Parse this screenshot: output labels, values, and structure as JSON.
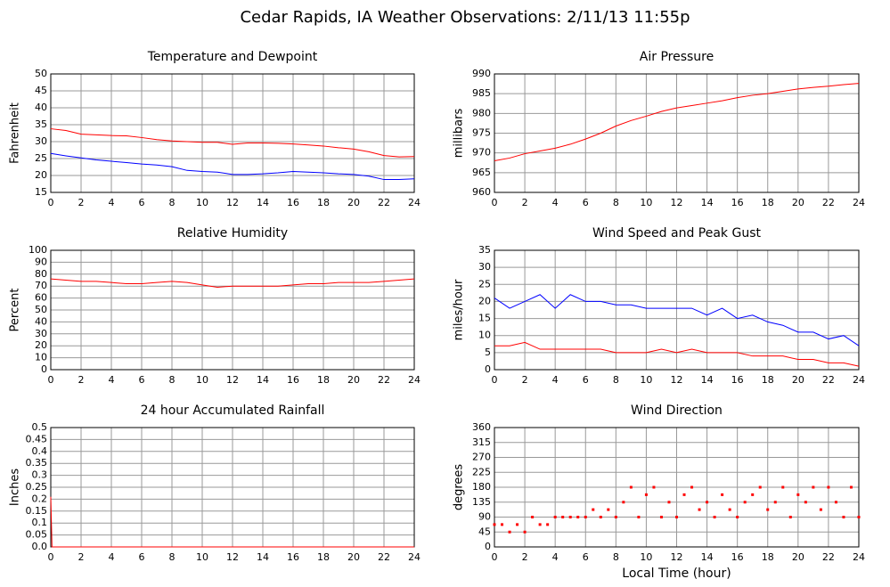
{
  "title": "Cedar Rapids, IA Weather Observations: 2/11/13 11:55p",
  "chart_data": [
    {
      "type": "line",
      "title": "Temperature and Dewpoint",
      "ylabel": "Fahrenheit",
      "x": [
        0,
        1,
        2,
        3,
        4,
        5,
        6,
        7,
        8,
        9,
        10,
        11,
        12,
        13,
        14,
        15,
        16,
        17,
        18,
        19,
        20,
        21,
        22,
        23,
        24
      ],
      "series": [
        {
          "color": "#ff0000",
          "values": [
            33.8,
            33.3,
            32.2,
            32,
            31.8,
            31.7,
            31.2,
            30.6,
            30.2,
            30,
            29.8,
            29.8,
            29.2,
            29.6,
            29.6,
            29.5,
            29.3,
            29,
            28.7,
            28.2,
            27.8,
            27,
            25.9,
            25.5,
            25.6
          ]
        },
        {
          "color": "#0000ff",
          "values": [
            26.5,
            25.8,
            25.2,
            24.6,
            24.2,
            23.8,
            23.4,
            23.1,
            22.6,
            21.5,
            21.2,
            21,
            20.3,
            20.3,
            20.5,
            20.8,
            21.2,
            21,
            20.8,
            20.5,
            20.3,
            19.8,
            18.8,
            18.8,
            19
          ]
        }
      ],
      "xlim": [
        0,
        24
      ],
      "xticks": [
        0,
        2,
        4,
        6,
        8,
        10,
        12,
        14,
        16,
        18,
        20,
        22,
        24
      ],
      "ylim": [
        15,
        50
      ],
      "yticks": [
        15,
        20,
        25,
        30,
        35,
        40,
        45,
        50
      ],
      "grid": true
    },
    {
      "type": "line",
      "title": "Air Pressure",
      "ylabel": "millibars",
      "x": [
        0,
        1,
        2,
        3,
        4,
        5,
        6,
        7,
        8,
        9,
        10,
        11,
        12,
        13,
        14,
        15,
        16,
        17,
        18,
        19,
        20,
        21,
        22,
        23,
        24
      ],
      "series": [
        {
          "color": "#ff0000",
          "values": [
            968,
            968.7,
            969.8,
            970.5,
            971.2,
            972.2,
            973.5,
            975,
            976.8,
            978.2,
            979.3,
            980.5,
            981.4,
            982,
            982.6,
            983.2,
            984,
            984.6,
            985,
            985.6,
            986.2,
            986.6,
            986.9,
            987.3,
            987.6
          ]
        }
      ],
      "xlim": [
        0,
        24
      ],
      "xticks": [
        0,
        2,
        4,
        6,
        8,
        10,
        12,
        14,
        16,
        18,
        20,
        22,
        24
      ],
      "ylim": [
        960,
        990
      ],
      "yticks": [
        960,
        965,
        970,
        975,
        980,
        985,
        990
      ],
      "grid": true
    },
    {
      "type": "line",
      "title": "Relative Humidity",
      "ylabel": "Percent",
      "x": [
        0,
        1,
        2,
        3,
        4,
        5,
        6,
        7,
        8,
        9,
        10,
        11,
        12,
        13,
        14,
        15,
        16,
        17,
        18,
        19,
        20,
        21,
        22,
        23,
        24
      ],
      "series": [
        {
          "color": "#ff0000",
          "values": [
            76,
            75,
            74,
            74,
            73,
            72,
            72,
            73,
            74,
            73,
            71,
            69,
            70,
            70,
            70,
            70,
            71,
            72,
            72,
            73,
            73,
            73,
            74,
            75,
            76
          ]
        }
      ],
      "xlim": [
        0,
        24
      ],
      "xticks": [
        0,
        2,
        4,
        6,
        8,
        10,
        12,
        14,
        16,
        18,
        20,
        22,
        24
      ],
      "ylim": [
        0,
        100
      ],
      "yticks": [
        0,
        10,
        20,
        30,
        40,
        50,
        60,
        70,
        80,
        90,
        100
      ],
      "grid": true
    },
    {
      "type": "line",
      "title": "Wind Speed and Peak Gust",
      "ylabel": "miles/hour",
      "x": [
        0,
        1,
        2,
        3,
        4,
        5,
        6,
        7,
        8,
        9,
        10,
        11,
        12,
        13,
        14,
        15,
        16,
        17,
        18,
        19,
        20,
        21,
        22,
        23,
        24
      ],
      "series": [
        {
          "color": "#0000ff",
          "values": [
            21,
            18,
            20,
            22,
            18,
            22,
            20,
            20,
            19,
            19,
            18,
            18,
            18,
            18,
            16,
            18,
            15,
            16,
            14,
            13,
            11,
            11,
            9,
            10,
            7
          ]
        },
        {
          "color": "#ff0000",
          "values": [
            7,
            7,
            8,
            6,
            6,
            6,
            6,
            6,
            5,
            5,
            5,
            6,
            5,
            6,
            5,
            5,
            5,
            4,
            4,
            4,
            3,
            3,
            2,
            2,
            1
          ]
        }
      ],
      "xlim": [
        0,
        24
      ],
      "xticks": [
        0,
        2,
        4,
        6,
        8,
        10,
        12,
        14,
        16,
        18,
        20,
        22,
        24
      ],
      "ylim": [
        0,
        35
      ],
      "yticks": [
        0,
        5,
        10,
        15,
        20,
        25,
        30,
        35
      ],
      "grid": true
    },
    {
      "type": "line",
      "title": "24 hour Accumulated Rainfall",
      "ylabel": "Inches",
      "x": [
        0,
        0.08,
        24
      ],
      "series": [
        {
          "color": "#ff0000",
          "values": [
            0.21,
            0,
            0
          ]
        }
      ],
      "xlim": [
        0,
        24
      ],
      "xticks": [
        0,
        2,
        4,
        6,
        8,
        10,
        12,
        14,
        16,
        18,
        20,
        22,
        24
      ],
      "ylim": [
        0,
        0.5
      ],
      "yticks": [
        {
          "value": 0,
          "label": "0.0"
        },
        0.05,
        0.1,
        0.15,
        0.2,
        0.25,
        0.3,
        0.35,
        0.4,
        0.45,
        0.5
      ],
      "grid": true
    },
    {
      "type": "scatter",
      "title": "Wind Direction",
      "ylabel": "degrees",
      "xlabel": "Local Time (hour)",
      "x": [
        0,
        0.5,
        1,
        1.5,
        2,
        2.5,
        3,
        3.5,
        4,
        4.5,
        5,
        5.5,
        6,
        6.5,
        7,
        7.5,
        8,
        8.5,
        9,
        9.5,
        10,
        10.5,
        11,
        11.5,
        12,
        12.5,
        13,
        13.5,
        14,
        14.5,
        15,
        15.5,
        16,
        16.5,
        17,
        17.5,
        18,
        18.5,
        19,
        19.5,
        20,
        20.5,
        21,
        21.5,
        22,
        22.5,
        23,
        23.5,
        24
      ],
      "values": [
        67.5,
        67.5,
        45,
        67.5,
        45,
        90,
        67.5,
        67.5,
        90,
        90,
        90,
        90,
        90,
        112.5,
        90,
        112.5,
        90,
        135,
        180,
        90,
        157.5,
        180,
        90,
        135,
        90,
        157.5,
        180,
        112.5,
        135,
        90,
        157.5,
        112.5,
        90,
        135,
        157.5,
        180,
        112.5,
        135,
        180,
        90,
        157.5,
        135,
        180,
        112.5,
        180,
        135,
        90,
        180,
        90
      ],
      "color": "#ff0000",
      "xlim": [
        0,
        24
      ],
      "xticks": [
        0,
        2,
        4,
        6,
        8,
        10,
        12,
        14,
        16,
        18,
        20,
        22,
        24
      ],
      "ylim": [
        0,
        360
      ],
      "yticks": [
        0,
        45,
        90,
        135,
        180,
        225,
        270,
        315,
        360
      ],
      "grid": true
    }
  ]
}
